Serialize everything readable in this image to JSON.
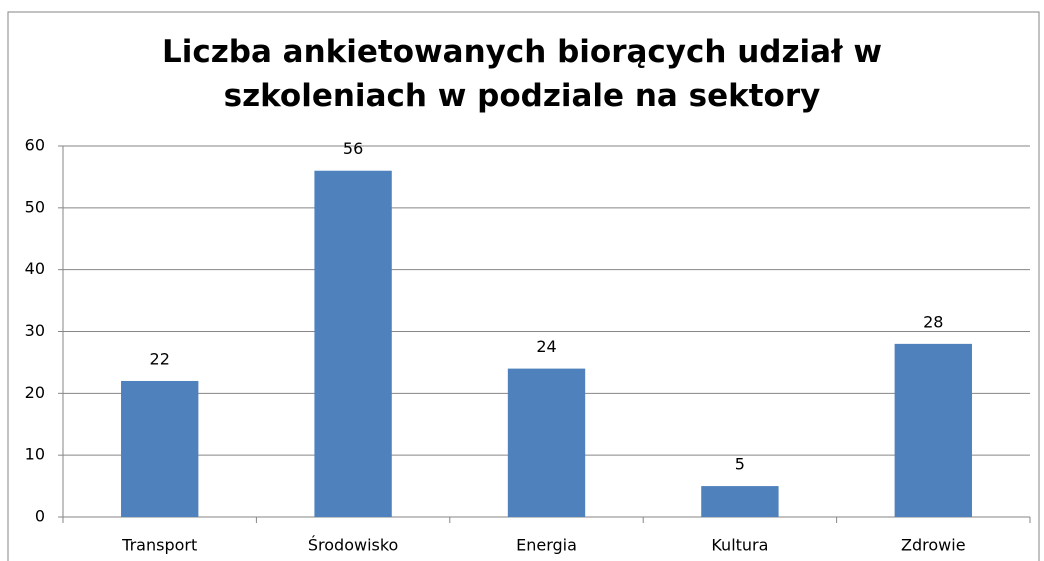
{
  "chart_data": {
    "type": "bar",
    "title": "Liczba ankietowanych biorących udział w szkoleniach w podziale na sektory",
    "categories": [
      "Transport",
      "Środowisko",
      "Energia",
      "Kultura",
      "Zdrowie"
    ],
    "values": [
      22,
      56,
      24,
      5,
      28
    ],
    "color": "#4f81bd",
    "ylim": [
      0,
      60
    ],
    "yticks": [
      0,
      10,
      20,
      30,
      40,
      50,
      60
    ],
    "grid": true
  }
}
